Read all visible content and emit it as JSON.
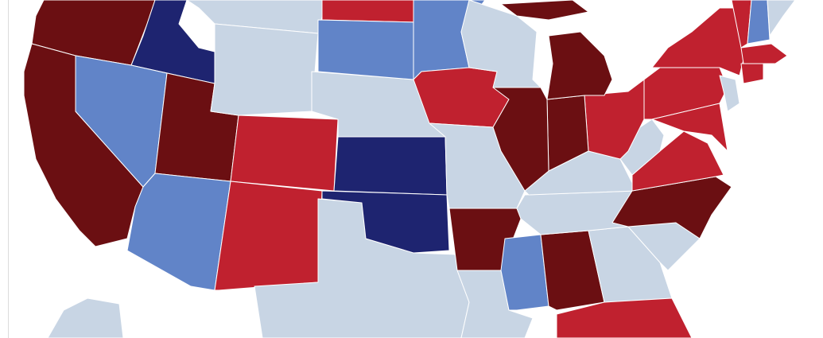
{
  "map": {
    "palette": [
      "#6b0f12",
      "#c0212f",
      "#c8d5e4",
      "#6184c8",
      "#1e2470"
    ]
  }
}
